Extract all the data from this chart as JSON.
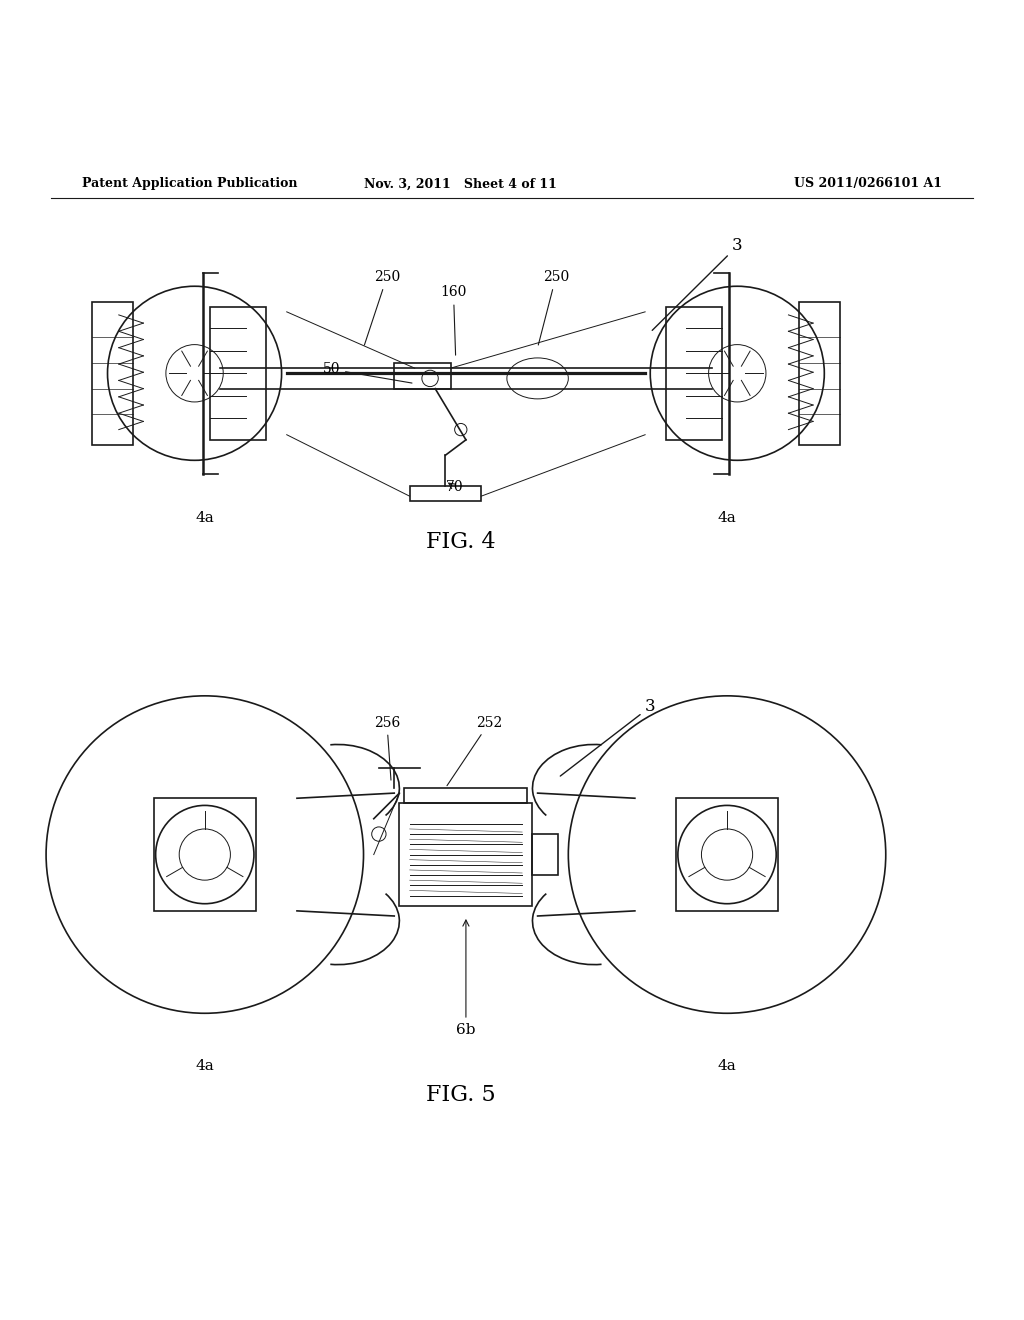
{
  "background_color": "#ffffff",
  "header_left": "Patent Application Publication",
  "header_center": "Nov. 3, 2011   Sheet 4 of 11",
  "header_right": "US 2011/0266101 A1",
  "fig4_label": "FIG. 4",
  "fig5_label": "FIG. 5",
  "line_color": "#1a1a1a",
  "text_color": "#000000"
}
